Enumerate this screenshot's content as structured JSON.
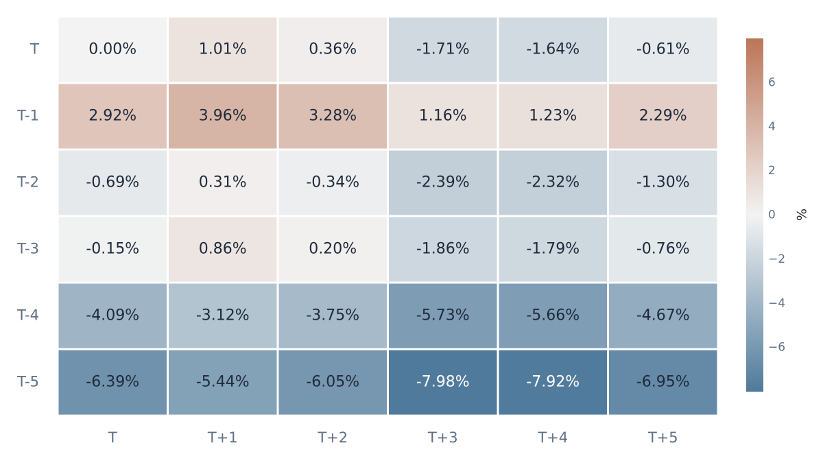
{
  "chart_data": {
    "type": "heatmap",
    "x_categories": [
      "T",
      "T+1",
      "T+2",
      "T+3",
      "T+4",
      "T+5"
    ],
    "y_categories": [
      "T",
      "T-1",
      "T-2",
      "T-3",
      "T-4",
      "T-5"
    ],
    "values": [
      [
        0.0,
        1.01,
        0.36,
        -1.71,
        -1.64,
        -0.61
      ],
      [
        2.92,
        3.96,
        3.28,
        1.16,
        1.23,
        2.29
      ],
      [
        -0.69,
        0.31,
        -0.34,
        -2.39,
        -2.32,
        -1.3
      ],
      [
        -0.15,
        0.86,
        0.2,
        -1.86,
        -1.79,
        -0.76
      ],
      [
        -4.09,
        -3.12,
        -3.75,
        -5.73,
        -5.66,
        -4.67
      ],
      [
        -6.39,
        -5.44,
        -6.05,
        -7.98,
        -7.92,
        -6.95
      ]
    ],
    "value_suffix": "%",
    "colorbar": {
      "title": "%",
      "range": [
        -8,
        8
      ],
      "ticks": [
        6,
        4,
        2,
        0,
        -2,
        -4,
        -6
      ],
      "tick_labels": [
        "6",
        "4",
        "2",
        "0",
        "−2",
        "−4",
        "−6"
      ],
      "colors": {
        "low": "#4f7a9b",
        "mid": "#f3f3f3",
        "high": "#bb7558"
      }
    },
    "grid": false
  }
}
